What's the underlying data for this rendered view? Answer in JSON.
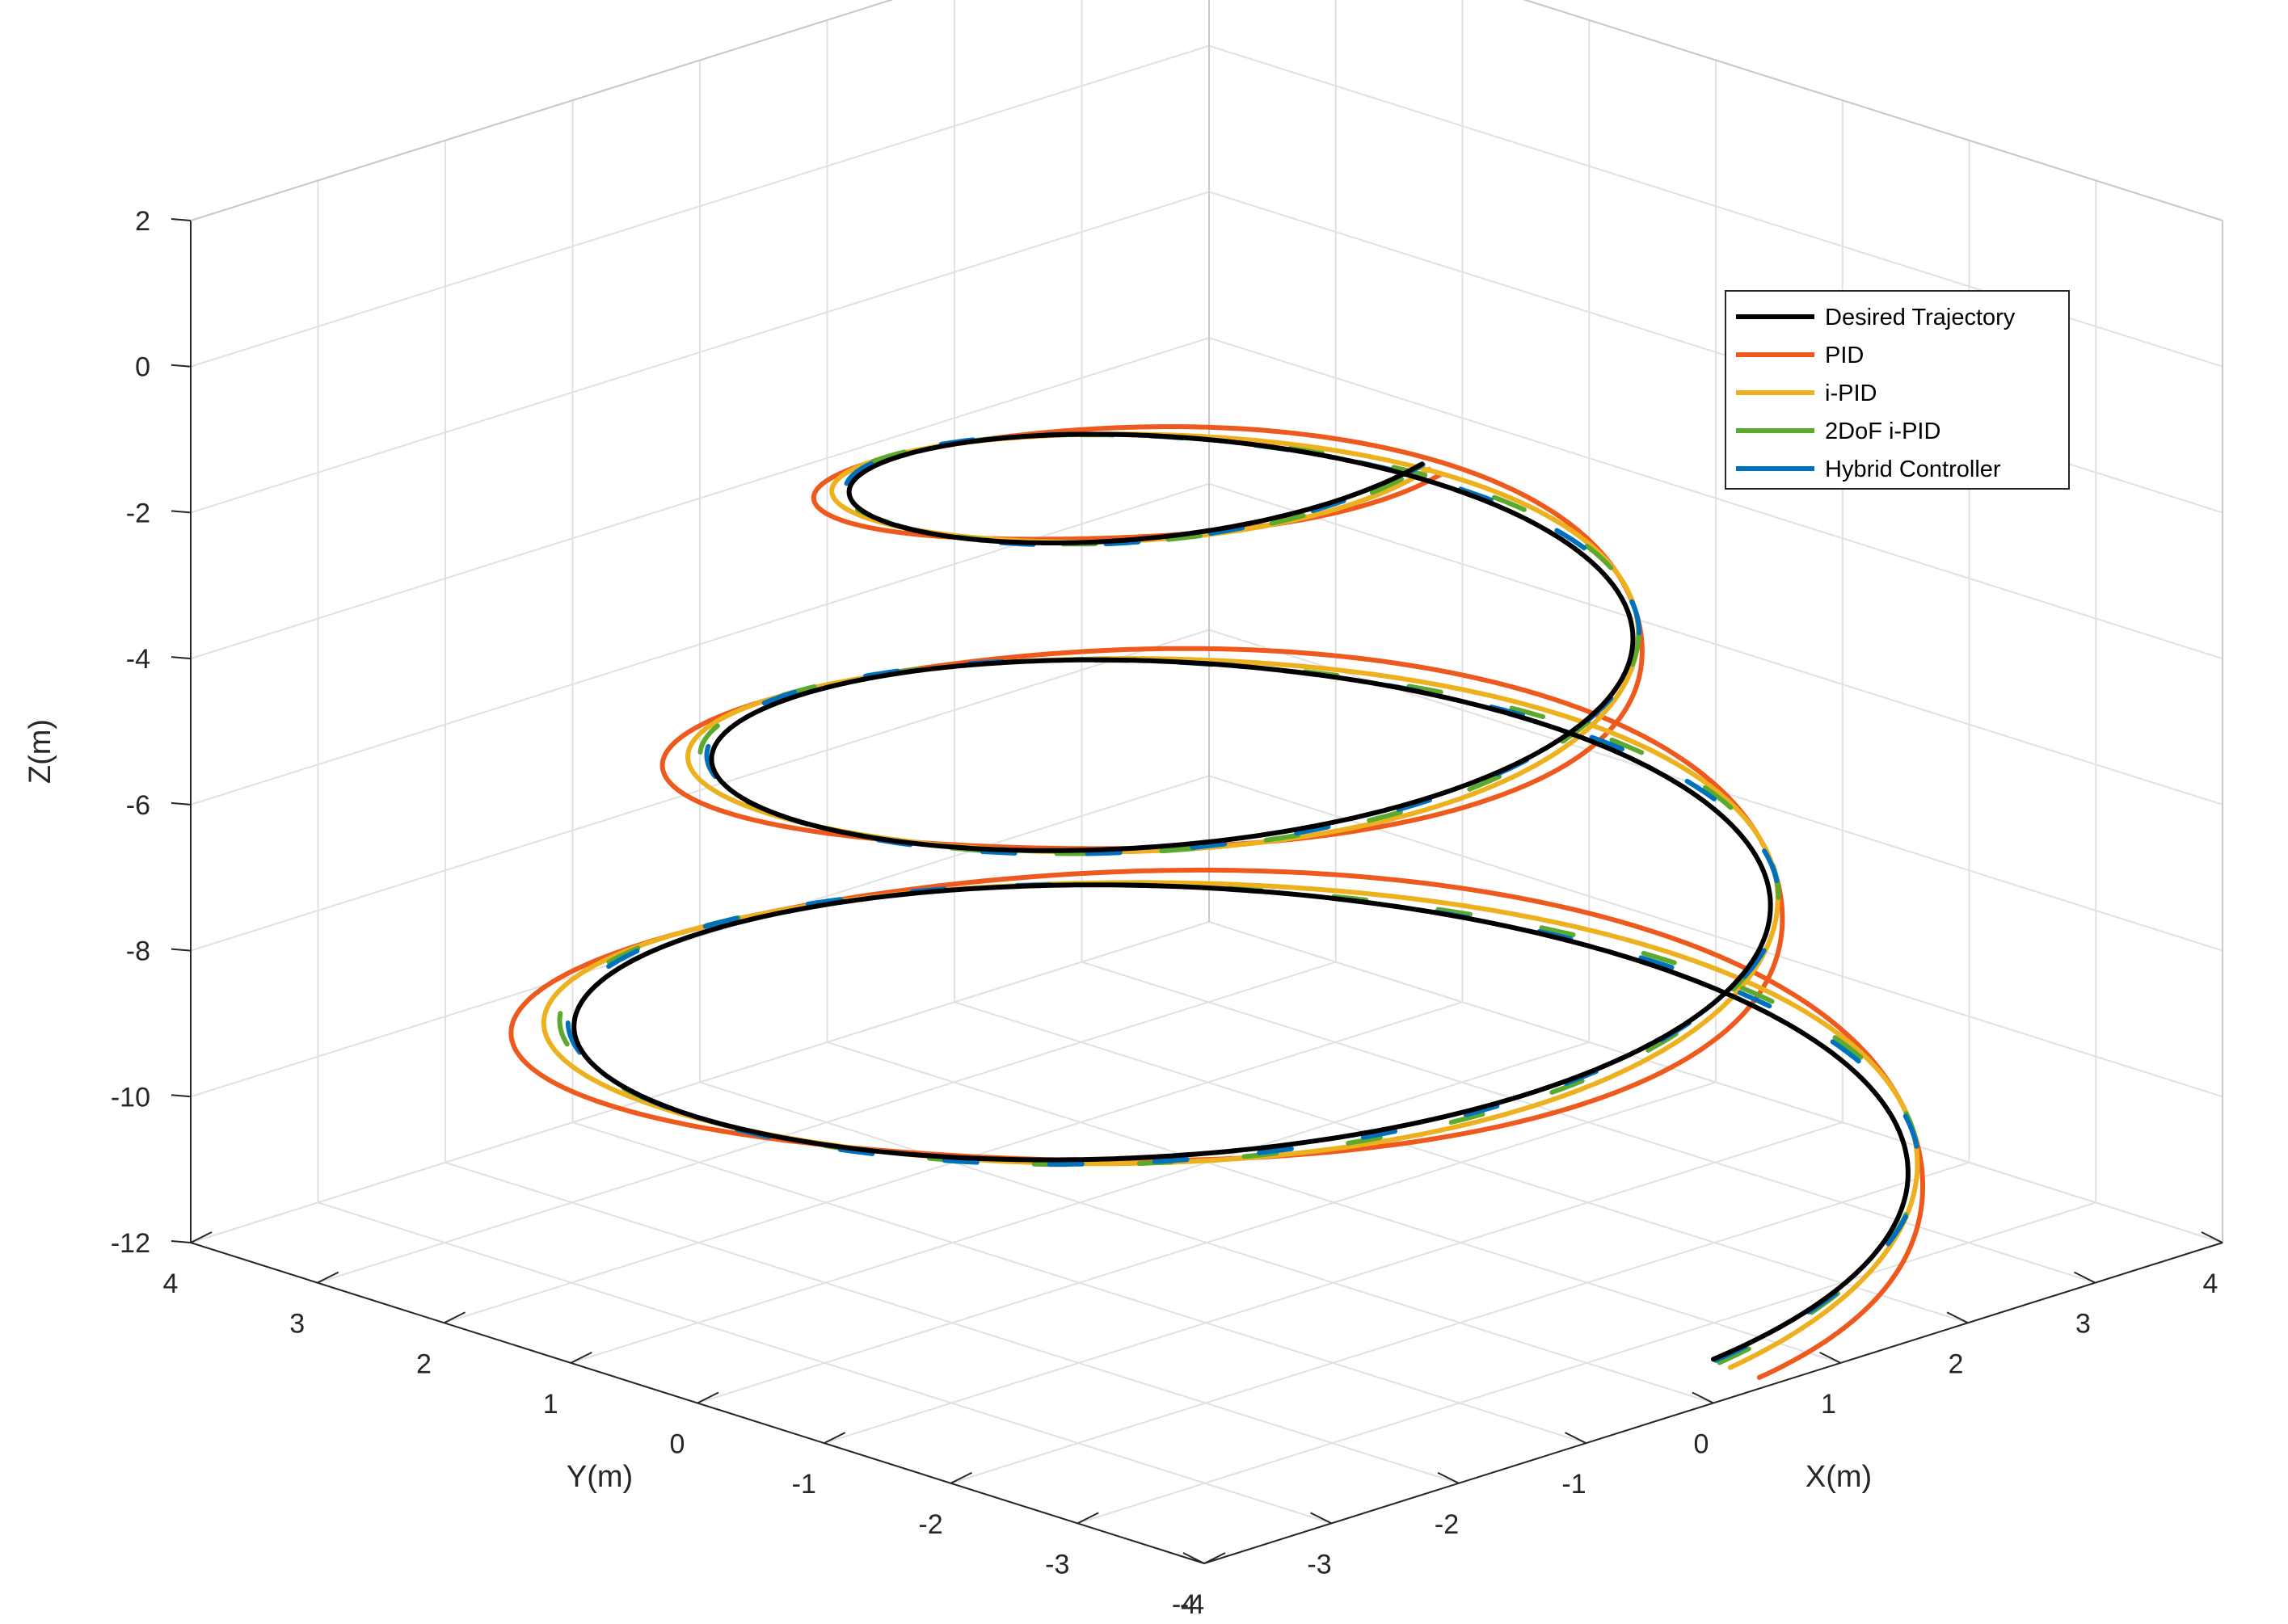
{
  "chart_data": {
    "type": "line3d",
    "title": "",
    "xlabel": "X(m)",
    "ylabel": "Y(m)",
    "zlabel": "Z(m)",
    "xlim": [
      -4,
      4
    ],
    "ylim": [
      -4,
      4
    ],
    "zlim": [
      -12,
      2
    ],
    "x_ticks": [
      "-4",
      "-3",
      "-2",
      "-1",
      "0",
      "1",
      "2",
      "3",
      "4"
    ],
    "y_ticks": [
      "4",
      "3",
      "2",
      "1",
      "0",
      "-1",
      "-2",
      "-3",
      "-4"
    ],
    "z_ticks": [
      "2",
      "0",
      "-2",
      "-4",
      "-6",
      "-8",
      "-10",
      "-12"
    ],
    "grid": true,
    "box": true,
    "legend_position": "top-right",
    "trajectory_model": {
      "description": "conical helix traced from the bottom upwards",
      "t_range": [
        0,
        1
      ],
      "revolutions": 3,
      "start_angle_deg": 270,
      "radius_start": 4,
      "radius_end": 1.7,
      "z_start": -11.4,
      "z_end": -0.4
    },
    "series": [
      {
        "name": "Desired Trajectory",
        "color": "#000000",
        "deviation": 0.0
      },
      {
        "name": "PID",
        "color": "#EE5A1E",
        "deviation": 0.1
      },
      {
        "name": "i-PID",
        "color": "#EDB120",
        "deviation": 0.05
      },
      {
        "name": "2DoF i-PID",
        "color": "#5BAA2E",
        "deviation": 0.03
      },
      {
        "name": "Hybrid Controller",
        "color": "#0072BD",
        "deviation": 0.02
      }
    ]
  }
}
